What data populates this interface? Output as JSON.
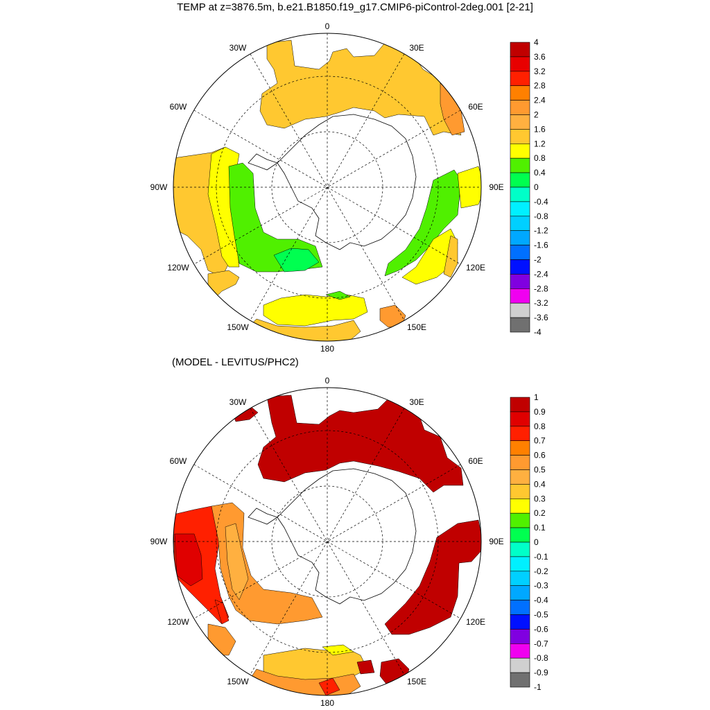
{
  "title": "TEMP at z=3876.5m, b.e21.B1850.f19_g17.CMIP6-piControl-2deg.001 [2-21]",
  "subtitle": "(MODEL - LEVITUS/PHC2)",
  "longitude_labels": {
    "top": "0",
    "bottom": "180",
    "30W": "30W",
    "30E": "30E",
    "60W": "60W",
    "60E": "60E",
    "90W": "90W",
    "90E": "90E",
    "120W": "120W",
    "120E": "120E",
    "150W": "150W",
    "150E": "150E"
  },
  "colorbar_top": {
    "labels": [
      "4",
      "3.6",
      "3.2",
      "2.8",
      "2.4",
      "2",
      "1.6",
      "1.2",
      "0.8",
      "0.4",
      "0",
      "-0.4",
      "-0.8",
      "-1.2",
      "-1.6",
      "-2",
      "-2.4",
      "-2.8",
      "-3.2",
      "-3.6",
      "-4"
    ],
    "colors": [
      "#c00000",
      "#e80000",
      "#ff2000",
      "#ff8000",
      "#ff9a30",
      "#ffb040",
      "#ffc830",
      "#ffff00",
      "#50f000",
      "#00ff50",
      "#00ffc8",
      "#00f0ff",
      "#00d0ff",
      "#00a8ff",
      "#0070ff",
      "#0010ff",
      "#8000e0",
      "#f000f0",
      "#d0d0d0",
      "#707070"
    ]
  },
  "colorbar_bottom": {
    "labels": [
      "1",
      "0.9",
      "0.8",
      "0.7",
      "0.6",
      "0.5",
      "0.4",
      "0.3",
      "0.2",
      "0.1",
      "0",
      "-0.1",
      "-0.2",
      "-0.3",
      "-0.4",
      "-0.5",
      "-0.6",
      "-0.7",
      "-0.8",
      "-0.9",
      "-1"
    ],
    "colors": [
      "#c00000",
      "#e00000",
      "#ff2000",
      "#ff8000",
      "#ff9a30",
      "#ffb040",
      "#ffc830",
      "#ffff00",
      "#50f000",
      "#00ff50",
      "#00ffc8",
      "#00f0ff",
      "#00d0ff",
      "#00a8ff",
      "#0070ff",
      "#0010ff",
      "#8000e0",
      "#f000f0",
      "#d0d0d0",
      "#707070"
    ]
  },
  "colors": {
    "top_orange": "#ffc830",
    "top_orange2": "#ff9a30",
    "top_yellow": "#ffff00",
    "top_green": "#50f000",
    "top_green2": "#00ff50",
    "bot_darkred": "#c00000",
    "bot_red": "#ff2000",
    "bot_red2": "#e00000",
    "bot_orange": "#ff9a30",
    "bot_orange2": "#ffb040",
    "bot_yellow": "#ffff00",
    "bot_amber": "#ffc830"
  }
}
